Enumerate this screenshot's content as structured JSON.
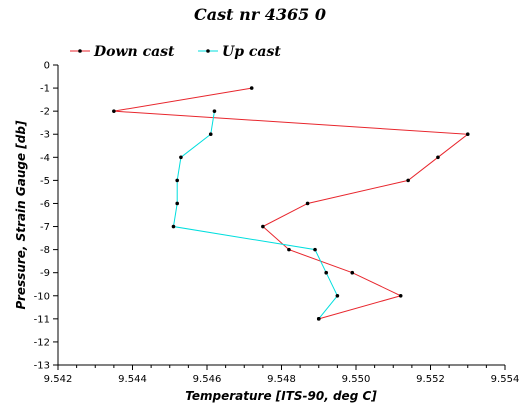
{
  "chart_data": {
    "type": "line",
    "title": "Cast nr 4365 0",
    "xlabel": "Temperature [ITS-90, deg C]",
    "ylabel": "Pressure, Strain Gauge [db]",
    "xlim": [
      9.542,
      9.554
    ],
    "ylim": [
      -13,
      0
    ],
    "x_ticks": [
      "9.542",
      "9.544",
      "9.546",
      "9.548",
      "9.550",
      "9.552",
      "9.554"
    ],
    "y_ticks": [
      "0",
      "-1",
      "-2",
      "-3",
      "-4",
      "-5",
      "-6",
      "-7",
      "-8",
      "-9",
      "-10",
      "-11",
      "-12",
      "-13"
    ],
    "grid": false,
    "legend_position": "top",
    "series": [
      {
        "name": "Down cast",
        "color": "#e8262d",
        "marker_color": "#000000",
        "points": [
          [
            9.5472,
            -1
          ],
          [
            9.5435,
            -2
          ],
          [
            9.553,
            -3
          ],
          [
            9.5522,
            -4
          ],
          [
            9.5514,
            -5
          ],
          [
            9.5487,
            -6
          ],
          [
            9.5475,
            -7
          ],
          [
            9.5482,
            -8
          ],
          [
            9.5499,
            -9
          ],
          [
            9.5512,
            -10
          ],
          [
            9.549,
            -11
          ]
        ]
      },
      {
        "name": "Up cast",
        "color": "#00dede",
        "marker_color": "#000000",
        "points": [
          [
            9.549,
            -11
          ],
          [
            9.5495,
            -10
          ],
          [
            9.5492,
            -9
          ],
          [
            9.5489,
            -8
          ],
          [
            9.5451,
            -7
          ],
          [
            9.5452,
            -6
          ],
          [
            9.5452,
            -5
          ],
          [
            9.5453,
            -4
          ],
          [
            9.5461,
            -3
          ],
          [
            9.5462,
            -2
          ]
        ]
      }
    ]
  }
}
